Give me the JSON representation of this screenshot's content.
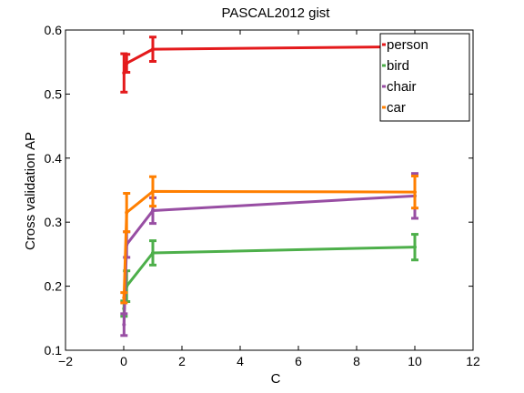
{
  "chart_data": {
    "type": "line",
    "title": "PASCAL2012 gist",
    "xlabel": "C",
    "ylabel": "Cross validation AP",
    "xlim": [
      -2,
      12
    ],
    "ylim": [
      0.1,
      0.6
    ],
    "xticks": [
      "−2",
      "0",
      "2",
      "4",
      "6",
      "8",
      "10",
      "12"
    ],
    "xtick_values": [
      -2,
      0,
      2,
      4,
      6,
      8,
      10,
      12
    ],
    "yticks": [
      "0.1",
      "0.2",
      "0.3",
      "0.4",
      "0.5",
      "0.6"
    ],
    "ytick_values": [
      0.1,
      0.2,
      0.3,
      0.4,
      0.5,
      0.6
    ],
    "x": [
      0.01,
      0.1,
      1,
      10
    ],
    "legend_position": "top-right",
    "grid": false,
    "series": [
      {
        "name": "person",
        "color": "#e41a1c",
        "values": [
          0.533,
          0.548,
          0.57,
          0.574
        ],
        "errors": [
          0.03,
          0.014,
          0.019,
          0.0
        ]
      },
      {
        "name": "bird",
        "color": "#4daf4a",
        "values": [
          0.165,
          0.2,
          0.252,
          0.261
        ],
        "errors": [
          0.012,
          0.024,
          0.019,
          0.02
        ]
      },
      {
        "name": "chair",
        "color": "#984ea3",
        "values": [
          0.14,
          0.265,
          0.318,
          0.341
        ],
        "errors": [
          0.017,
          0.02,
          0.02,
          0.035
        ]
      },
      {
        "name": "car",
        "color": "#ff7f00",
        "values": [
          0.182,
          0.315,
          0.348,
          0.347
        ],
        "errors": [
          0.008,
          0.03,
          0.023,
          0.025
        ]
      }
    ]
  }
}
